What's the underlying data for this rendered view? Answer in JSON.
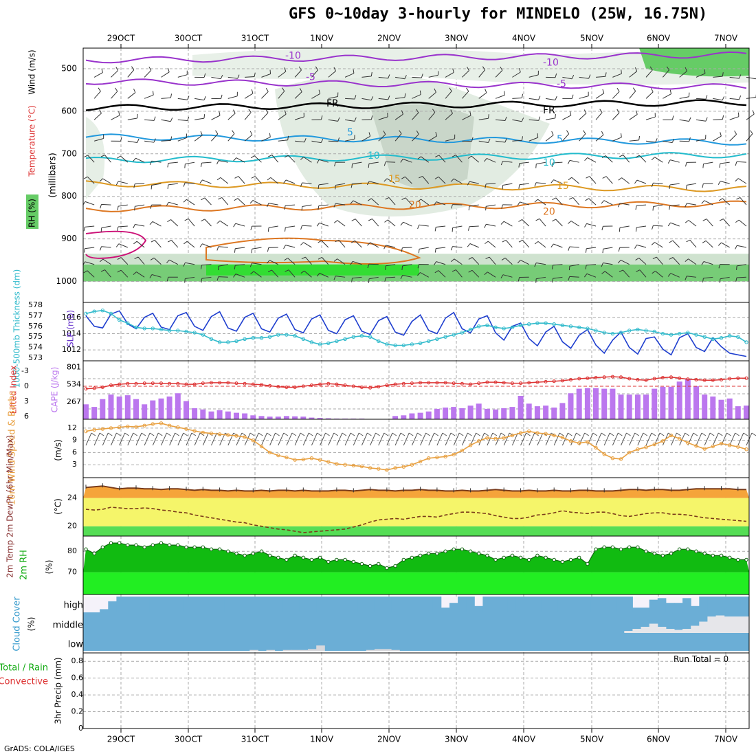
{
  "header": {
    "title": "GFS 0~10day 3-hourly for MINDELO (25W, 16.75N)"
  },
  "footer": {
    "credit": "GrADS: COLA/IGES"
  },
  "time_axis": {
    "labels": [
      "29OCT",
      "30OCT",
      "31OCT",
      "1NOV",
      "2NOV",
      "3NOV",
      "4NOV",
      "5NOV",
      "6NOV",
      "7NOV"
    ]
  },
  "panels": {
    "upper": {
      "ylabel": "(millibars)",
      "legend": [
        "RH (%)",
        "Temperature (°C)",
        "Wind (m/s)"
      ],
      "ticks": [
        "500",
        "600",
        "700",
        "800",
        "900",
        "1000"
      ],
      "fr_label": "FR"
    },
    "slp": {
      "left_label": "1000-500mb Thickness (dm)",
      "right_label": "SLP (mb)",
      "left_ticks": [
        "578",
        "577",
        "576",
        "575",
        "574",
        "573"
      ],
      "right_ticks": [
        "1016",
        "1014",
        "1012"
      ]
    },
    "cape": {
      "left_label": "Lifted Index",
      "right_label": "CAPE (J/kg)",
      "left_ticks": [
        "-3",
        "0",
        "3",
        "6"
      ],
      "right_ticks": [
        "801",
        "534",
        "267"
      ]
    },
    "wind": {
      "label": "10m Wind Speed & Barbs",
      "unit": "(m/s)",
      "ticks": [
        "12",
        "9",
        "6",
        "3"
      ]
    },
    "temp": {
      "label": "2m Temp 2m DewPt (6hr Min/Max)",
      "unit": "(°C)",
      "ticks": [
        "24",
        "20"
      ]
    },
    "rh": {
      "label": "2m RH",
      "unit": "(%)",
      "ticks": [
        "80",
        "70"
      ]
    },
    "cloud": {
      "label": "Cloud Cover",
      "unit": "(%)",
      "levels": [
        "high",
        "middle",
        "low"
      ]
    },
    "precip": {
      "label_total": "Total / Rain",
      "label_conv": "Convective",
      "ylabel": "3hr Precip (mm)",
      "ticks": [
        "0.8",
        "0.6",
        "0.4",
        "0.2",
        "0"
      ],
      "run_total": "Run Total = 0"
    }
  },
  "colors": {
    "slp": "#1f3fcf",
    "thickness": "#33bbcc",
    "cape": "#bb77ee",
    "li": "#dd3333",
    "wind": "#e8a040",
    "temp_band": "#f5a43a",
    "dew_band": "#f5f56a",
    "rh_fill": "#11bb11",
    "cloud": "#6baed6"
  },
  "chart_data": {
    "type": "meteogram",
    "x": {
      "start": "28OCT 12Z",
      "step_hours": 3,
      "count": 80
    },
    "slp_mb": [
      1016.2,
      1014.9,
      1014.7,
      1016.4,
      1016.8,
      1015.2,
      1014.6,
      1016.0,
      1016.5,
      1014.8,
      1014.5,
      1016.2,
      1016.6,
      1014.9,
      1014.4,
      1016.1,
      1016.7,
      1014.7,
      1014.3,
      1016.0,
      1016.5,
      1014.6,
      1014.2,
      1015.9,
      1016.4,
      1014.5,
      1014.1,
      1015.8,
      1016.3,
      1014.4,
      1014.0,
      1015.7,
      1016.2,
      1014.3,
      1013.9,
      1015.6,
      1016.1,
      1014.2,
      1013.8,
      1015.5,
      1016.3,
      1014.4,
      1014.0,
      1015.9,
      1016.6,
      1014.6,
      1014.1,
      1015.8,
      1016.2,
      1014.1,
      1013.2,
      1014.9,
      1015.3,
      1013.4,
      1012.5,
      1014.2,
      1014.9,
      1013.0,
      1012.2,
      1013.8,
      1014.5,
      1012.6,
      1011.6,
      1013.2,
      1014.2,
      1012.3,
      1011.5,
      1013.4,
      1013.6,
      1012.1,
      1011.4,
      1013.5,
      1014.0,
      1012.3,
      1011.8,
      1013.5,
      1012.4,
      1011.6,
      1011.4,
      1011.2
    ],
    "thickness_dm": [
      577.2,
      577.4,
      577.5,
      577.2,
      576.6,
      576.3,
      575.9,
      575.8,
      575.8,
      575.7,
      575.6,
      575.6,
      575.5,
      575.4,
      575.2,
      574.8,
      574.5,
      574.5,
      574.6,
      574.8,
      574.9,
      574.9,
      575.0,
      575.2,
      575.2,
      575.1,
      574.8,
      574.5,
      574.3,
      574.4,
      574.6,
      574.8,
      575.0,
      575.1,
      575.0,
      574.6,
      574.3,
      574.2,
      574.2,
      574.3,
      574.4,
      574.6,
      574.8,
      575.0,
      575.2,
      575.4,
      575.7,
      576.0,
      576.1,
      575.9,
      575.8,
      575.9,
      576.1,
      576.2,
      576.3,
      576.3,
      576.2,
      576.1,
      576.0,
      575.9,
      575.8,
      575.6,
      575.4,
      575.3,
      575.4,
      575.6,
      575.7,
      575.6,
      575.5,
      575.3,
      575.2,
      575.3,
      575.4,
      575.2,
      575.0,
      574.8,
      574.9,
      575.1,
      575.0,
      574.5
    ],
    "cape_jkg": [
      230,
      190,
      310,
      380,
      350,
      370,
      310,
      230,
      290,
      320,
      350,
      400,
      280,
      170,
      150,
      120,
      140,
      120,
      100,
      90,
      60,
      50,
      40,
      40,
      50,
      45,
      40,
      25,
      20,
      15,
      10,
      10,
      10,
      10,
      5,
      5,
      5,
      50,
      60,
      90,
      100,
      120,
      160,
      180,
      190,
      170,
      210,
      240,
      160,
      150,
      170,
      190,
      360,
      240,
      200,
      210,
      180,
      250,
      400,
      470,
      480,
      480,
      470,
      470,
      380,
      380,
      380,
      380,
      470,
      500,
      500,
      580,
      620,
      510,
      380,
      350,
      300,
      320,
      200,
      210
    ],
    "lifted_index": [
      0.5,
      0.4,
      0.2,
      -0.2,
      -0.4,
      -0.5,
      -0.5,
      -0.6,
      -0.6,
      -0.6,
      -0.5,
      -0.5,
      -0.4,
      -0.4,
      -0.6,
      -0.7,
      -0.7,
      -0.7,
      -0.6,
      -0.5,
      -0.4,
      -0.3,
      -0.1,
      0.1,
      0.2,
      0.2,
      0.0,
      -0.2,
      -0.4,
      -0.5,
      -0.4,
      -0.2,
      0.0,
      0.2,
      0.3,
      0.1,
      -0.2,
      -0.4,
      -0.5,
      -0.6,
      -0.7,
      -0.7,
      -0.7,
      -0.7,
      -0.6,
      -0.5,
      -0.4,
      -0.6,
      -0.8,
      -0.8,
      -0.7,
      -0.6,
      -0.6,
      -0.7,
      -0.8,
      -0.9,
      -1.0,
      -1.1,
      -1.3,
      -1.5,
      -1.6,
      -1.7,
      -1.8,
      -1.9,
      -1.8,
      -1.5,
      -1.3,
      -1.2,
      -1.5,
      -1.7,
      -1.8,
      -1.6,
      -1.4,
      -1.3,
      -1.2,
      -1.2,
      -1.3,
      -1.5,
      -1.6,
      -1.6
    ],
    "wind_ms": [
      11.2,
      11.6,
      11.8,
      12.0,
      12.2,
      12.4,
      12.3,
      12.6,
      13.0,
      13.2,
      12.6,
      12.2,
      11.8,
      11.3,
      10.9,
      10.7,
      10.5,
      10.3,
      10.1,
      9.8,
      9.0,
      7.5,
      6.0,
      5.3,
      4.8,
      4.2,
      4.3,
      4.6,
      4.2,
      3.7,
      3.2,
      3.0,
      2.8,
      2.6,
      2.2,
      2.0,
      1.7,
      2.2,
      2.5,
      3.0,
      3.8,
      4.6,
      4.8,
      5.0,
      5.5,
      6.5,
      7.8,
      8.8,
      9.6,
      9.4,
      9.6,
      10.2,
      10.8,
      11.2,
      10.8,
      10.6,
      10.2,
      9.7,
      8.8,
      8.3,
      8.6,
      7.2,
      5.6,
      4.6,
      4.4,
      6.0,
      6.8,
      7.3,
      8.0,
      8.8,
      10.2,
      9.4,
      8.4,
      7.6,
      6.9,
      7.5,
      8.2,
      7.8,
      7.4,
      6.8
    ],
    "temp_c": [
      25.5,
      25.6,
      25.7,
      25.5,
      25.3,
      25.4,
      25.4,
      25.3,
      25.3,
      25.2,
      25.3,
      25.3,
      25.2,
      25.1,
      25.2,
      25.1,
      25.1,
      25.0,
      25.1,
      25.0,
      25.0,
      25.1,
      25.0,
      25.1,
      25.1,
      25.0,
      25.1,
      25.0,
      25.0,
      25.0,
      25.1,
      25.1,
      25.0,
      25.1,
      25.2,
      25.1,
      25.1,
      25.0,
      25.1,
      25.1,
      25.2,
      25.1,
      25.1,
      25.0,
      25.0,
      25.1,
      25.0,
      25.0,
      25.1,
      25.2,
      25.1,
      25.0,
      25.0,
      25.1,
      25.0,
      25.0,
      25.1,
      25.0,
      25.0,
      25.1,
      25.1,
      25.0,
      25.0,
      25.0,
      25.1,
      25.2,
      25.2,
      25.1,
      25.2,
      25.2,
      25.1,
      25.1,
      25.2,
      25.3,
      25.3,
      25.3,
      25.3,
      25.3,
      25.2,
      25.2
    ],
    "dewpoint_c": [
      22.4,
      22.3,
      22.4,
      22.7,
      22.6,
      22.5,
      22.5,
      22.6,
      22.5,
      22.3,
      22.2,
      22.0,
      21.9,
      21.6,
      21.4,
      21.2,
      21.0,
      20.8,
      20.6,
      20.5,
      20.2,
      20.0,
      19.8,
      19.6,
      19.5,
      19.3,
      19.1,
      19.2,
      19.3,
      19.4,
      19.5,
      19.6,
      19.9,
      20.2,
      20.6,
      20.9,
      21.0,
      21.1,
      21.0,
      21.2,
      21.4,
      21.4,
      21.3,
      21.6,
      21.8,
      22.0,
      22.0,
      21.9,
      21.8,
      21.5,
      21.3,
      21.1,
      21.1,
      21.3,
      21.6,
      21.7,
      21.9,
      22.2,
      22.0,
      21.9,
      21.8,
      22.0,
      22.0,
      21.8,
      21.5,
      21.4,
      21.6,
      21.8,
      21.9,
      21.9,
      21.7,
      21.7,
      21.6,
      21.4,
      21.2,
      21.1,
      21.0,
      20.9,
      20.8,
      20.7
    ],
    "rh_pct": [
      81,
      79,
      82,
      84,
      84,
      83,
      83,
      82,
      83,
      84,
      83,
      83,
      82,
      82,
      82,
      81,
      81,
      80,
      79,
      78,
      79,
      80,
      78,
      77,
      76,
      78,
      77,
      76,
      77,
      75,
      76,
      76,
      75,
      74,
      73,
      74,
      72,
      73,
      76,
      77,
      78,
      79,
      79,
      80,
      81,
      81,
      80,
      79,
      78,
      76,
      77,
      78,
      77,
      76,
      78,
      77,
      76,
      75,
      76,
      77,
      74,
      81,
      82,
      82,
      81,
      82,
      82,
      80,
      79,
      78,
      79,
      81,
      81,
      80,
      79,
      78,
      78,
      77,
      76,
      76
    ],
    "cloud_high_pct": [
      0,
      0,
      20,
      70,
      100,
      100,
      100,
      100,
      100,
      100,
      100,
      100,
      100,
      100,
      100,
      100,
      100,
      100,
      100,
      100,
      100,
      100,
      100,
      100,
      100,
      100,
      100,
      100,
      100,
      100,
      100,
      100,
      100,
      100,
      100,
      100,
      100,
      100,
      100,
      100,
      100,
      100,
      100,
      30,
      60,
      100,
      100,
      40,
      100,
      100,
      100,
      100,
      100,
      100,
      100,
      100,
      100,
      100,
      100,
      100,
      100,
      100,
      100,
      100,
      100,
      100,
      30,
      30,
      80,
      90,
      60,
      60,
      90,
      40,
      100,
      100,
      100,
      100,
      100,
      100
    ],
    "cloud_mid_pct": [
      0,
      0,
      0,
      0,
      0,
      0,
      0,
      0,
      0,
      0,
      0,
      0,
      0,
      0,
      0,
      0,
      0,
      0,
      0,
      0,
      0,
      0,
      0,
      0,
      0,
      0,
      0,
      0,
      0,
      0,
      0,
      0,
      0,
      0,
      0,
      0,
      0,
      0,
      0,
      0,
      0,
      0,
      0,
      0,
      0,
      0,
      0,
      0,
      0,
      0,
      0,
      0,
      0,
      0,
      0,
      0,
      0,
      0,
      0,
      0,
      0,
      0,
      0,
      0,
      0,
      10,
      20,
      30,
      45,
      30,
      20,
      15,
      20,
      35,
      55,
      80,
      85,
      80,
      80,
      80
    ],
    "cloud_low_pct": [
      0,
      0,
      0,
      0,
      0,
      0,
      0,
      0,
      0,
      0,
      0,
      0,
      0,
      0,
      0,
      0,
      0,
      0,
      0,
      0,
      5,
      0,
      5,
      0,
      5,
      5,
      5,
      10,
      30,
      0,
      0,
      0,
      0,
      0,
      5,
      10,
      10,
      5,
      0,
      0,
      0,
      0,
      0,
      0,
      0,
      0,
      0,
      0,
      0,
      0,
      0,
      0,
      0,
      0,
      0,
      0,
      0,
      0,
      0,
      0,
      0,
      0,
      0,
      0,
      0,
      0,
      0,
      0,
      0,
      0,
      0,
      0,
      0,
      0,
      0,
      0,
      0,
      0,
      0,
      0
    ],
    "precip_mm": {
      "ylim": [
        0,
        0.9
      ],
      "run_total": 0
    },
    "upper_air": {
      "temperature_isotherms_c": [
        -10,
        -5,
        5,
        10,
        15,
        20
      ],
      "freezing_level_label": "FR",
      "rh_shading_levels_pct": [
        30,
        50,
        70,
        90
      ]
    }
  }
}
